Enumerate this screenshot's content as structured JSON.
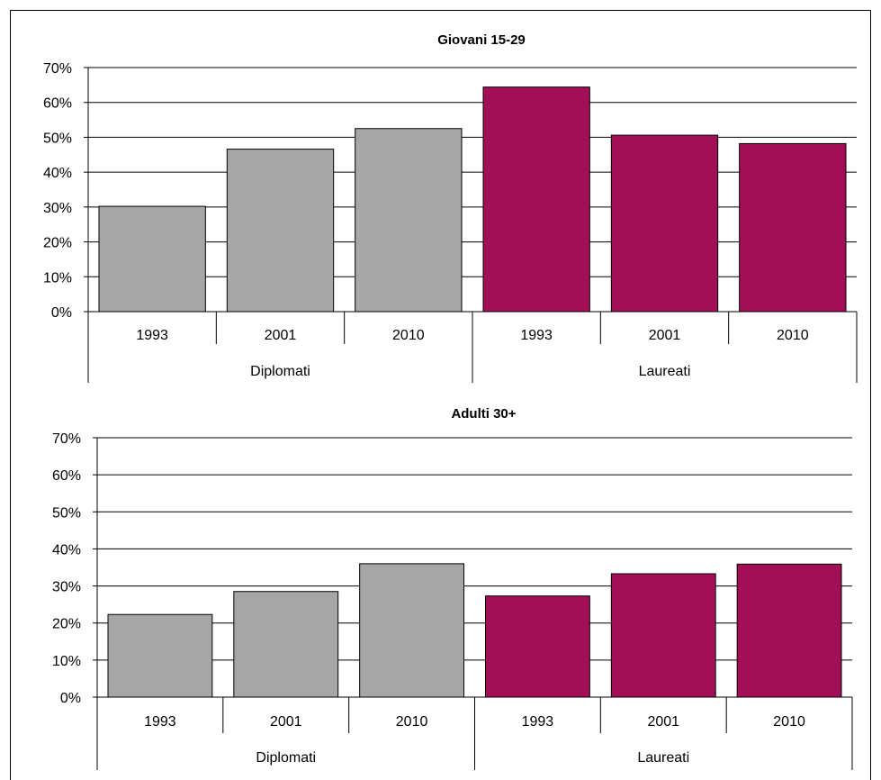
{
  "chart_data": [
    {
      "type": "bar",
      "title": "Giovani 15-29",
      "groups": [
        {
          "label": "Diplomati",
          "categories": [
            "1993",
            "2001",
            "2010"
          ],
          "values": [
            30.2,
            46.6,
            52.5
          ],
          "color": "#a6a6a6"
        },
        {
          "label": "Laureati",
          "categories": [
            "1993",
            "2001",
            "2010"
          ],
          "values": [
            64.4,
            50.6,
            48.2
          ],
          "color": "#a20f58"
        }
      ],
      "ylim": [
        0,
        70
      ],
      "yticks": [
        "0%",
        "10%",
        "20%",
        "30%",
        "40%",
        "50%",
        "60%",
        "70%"
      ],
      "grid": true
    },
    {
      "type": "bar",
      "title": "Adulti 30+",
      "groups": [
        {
          "label": "Diplomati",
          "categories": [
            "1993",
            "2001",
            "2010"
          ],
          "values": [
            22.3,
            28.5,
            36.0
          ],
          "color": "#a6a6a6"
        },
        {
          "label": "Laureati",
          "categories": [
            "1993",
            "2001",
            "2010"
          ],
          "values": [
            27.3,
            33.3,
            35.9
          ],
          "color": "#a20f58"
        }
      ],
      "ylim": [
        0,
        70
      ],
      "yticks": [
        "0%",
        "10%",
        "20%",
        "30%",
        "40%",
        "50%",
        "60%",
        "70%"
      ],
      "grid": true
    }
  ]
}
